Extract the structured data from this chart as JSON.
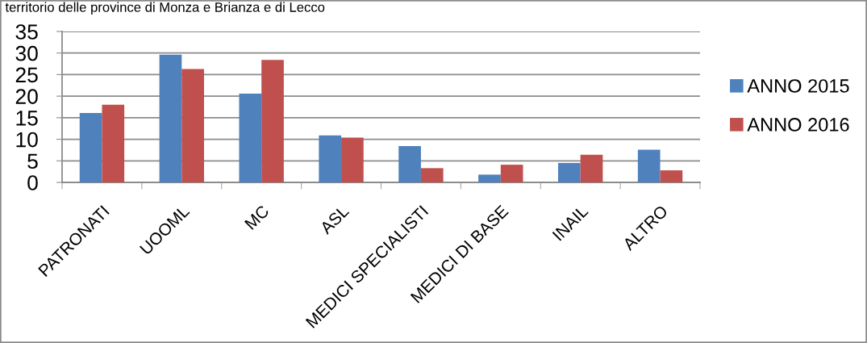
{
  "chart_data": {
    "type": "bar",
    "title": "territorio delle province di Monza e Brianza e di Lecco",
    "categories": [
      "PATRONATI",
      "UOOML",
      "MC",
      "ASL",
      "MEDICI SPECIALISTI",
      "MEDICI DI BASE",
      "INAIL",
      "ALTRO"
    ],
    "series": [
      {
        "name": "ANNO 2015",
        "color": "#4f81bd",
        "values": [
          16.1,
          29.6,
          20.6,
          10.9,
          8.4,
          1.8,
          4.5,
          7.6
        ]
      },
      {
        "name": "ANNO 2016",
        "color": "#c0504d",
        "values": [
          18.0,
          26.3,
          28.4,
          10.4,
          3.3,
          4.1,
          6.4,
          2.8
        ]
      }
    ],
    "ylim": [
      0,
      35
    ],
    "yticks": [
      0,
      5,
      10,
      15,
      20,
      25,
      30,
      35
    ],
    "grid": "y",
    "legend": "right"
  }
}
